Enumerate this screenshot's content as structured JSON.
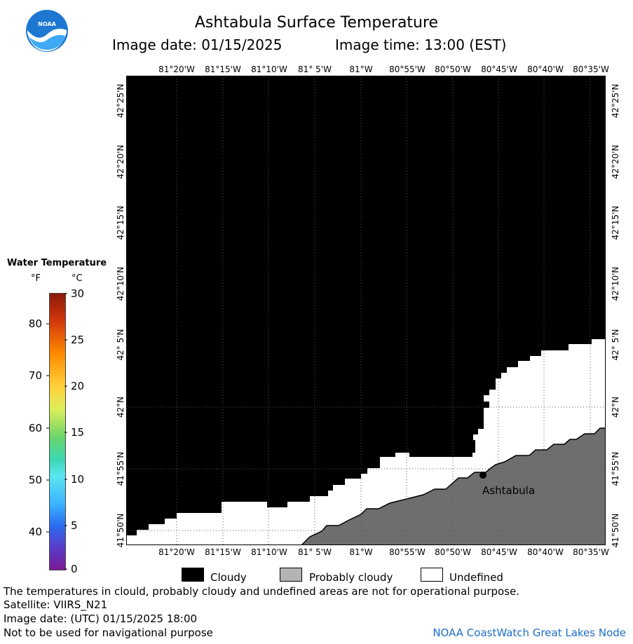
{
  "header": {
    "title": "Ashtabula Surface Temperature",
    "image_date": "Image date: 01/15/2025",
    "image_time": "Image time: 13:00 (EST)"
  },
  "logo": {
    "text": "NOAA",
    "icon": "noaa-logo-icon",
    "colors": {
      "blue": "#1e78d2",
      "light": "#3fa9f5",
      "white": "#ffffff"
    }
  },
  "map": {
    "lon_labels": [
      "81°20'W",
      "81°15'W",
      "81°10'W",
      "81° 5'W",
      "81°W",
      "80°55'W",
      "80°50'W",
      "80°45'W",
      "80°40'W",
      "80°35'W"
    ],
    "lat_labels": [
      "42°25'N",
      "42°20'N",
      "42°15'N",
      "42°10'N",
      "42° 5'N",
      "42°N",
      "41°55'N",
      "41°50'N"
    ],
    "city": "Ashtabula",
    "colors": {
      "cloudy": "#000000",
      "land": "#6e6e6e",
      "undefined": "#ffffff"
    }
  },
  "legend": {
    "title": "Water Temperature",
    "unit_f": "°F",
    "unit_c": "°C",
    "f_ticks": [
      "80",
      "70",
      "60",
      "50",
      "40"
    ],
    "c_ticks": [
      "30",
      "25",
      "20",
      "15",
      "10",
      "5",
      "0"
    ]
  },
  "key": {
    "cloudy": "Cloudy",
    "probably_cloudy": "Probably cloudy",
    "undefined": "Undefined",
    "colors": {
      "cloudy": "#000000",
      "probably_cloudy": "#b4b4b4",
      "undefined": "#ffffff"
    }
  },
  "footer": {
    "disclaimer": "The temperatures in clould, probably cloudy and undefined areas are not for operational purpose.",
    "satellite": "Satellite: VIIRS_N21",
    "utc_date": "Image date: (UTC) 01/15/2025  18:00",
    "navigation": "Not to be used for navigational purpose",
    "credit": "NOAA CoastWatch Great Lakes Node"
  }
}
